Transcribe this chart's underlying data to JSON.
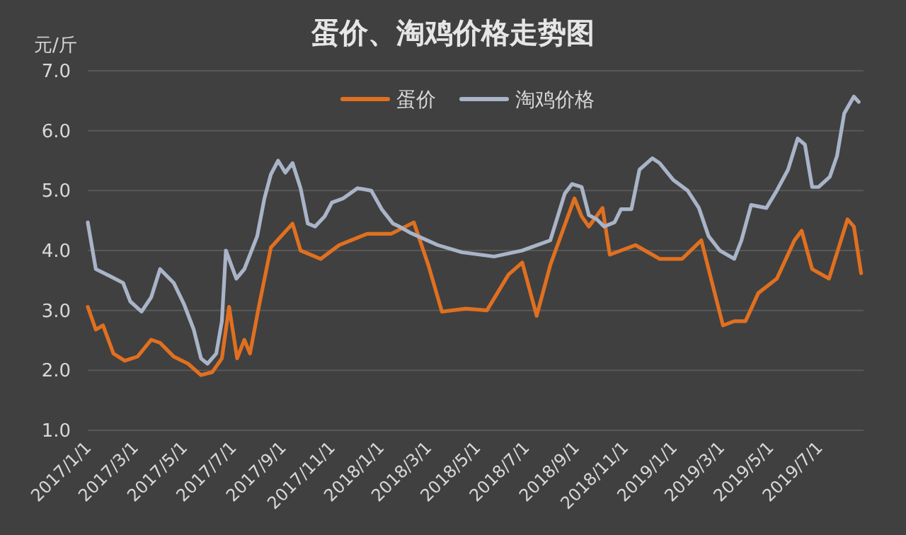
{
  "chart_data": {
    "type": "line",
    "title": "蛋价、淘鸡价格走势图",
    "ylabel": "元/斤",
    "xlim": [
      "2017-01-01",
      "2019-08-25"
    ],
    "xticks": [
      {
        "value": "2017-01-01",
        "label": "2017/1/1"
      },
      {
        "value": "2017-03-01",
        "label": "2017/3/1"
      },
      {
        "value": "2017-05-01",
        "label": "2017/5/1"
      },
      {
        "value": "2017-07-01",
        "label": "2017/7/1"
      },
      {
        "value": "2017-09-01",
        "label": "2017/9/1"
      },
      {
        "value": "2017-11-01",
        "label": "2017/11/1"
      },
      {
        "value": "2018-01-01",
        "label": "2018/1/1"
      },
      {
        "value": "2018-03-01",
        "label": "2018/3/1"
      },
      {
        "value": "2018-05-01",
        "label": "2018/5/1"
      },
      {
        "value": "2018-07-01",
        "label": "2018/7/1"
      },
      {
        "value": "2018-09-01",
        "label": "2018/9/1"
      },
      {
        "value": "2018-11-01",
        "label": "2018/11/1"
      },
      {
        "value": "2019-01-01",
        "label": "2019/1/1"
      },
      {
        "value": "2019-03-01",
        "label": "2019/3/1"
      },
      {
        "value": "2019-05-01",
        "label": "2019/5/1"
      },
      {
        "value": "2019-07-01",
        "label": "2019/7/1"
      }
    ],
    "ylim": [
      1,
      7
    ],
    "yticks": [
      {
        "value": 1,
        "label": "1.0"
      },
      {
        "value": 2,
        "label": "2.0"
      },
      {
        "value": 3,
        "label": "3.0"
      },
      {
        "value": 4,
        "label": "4.0"
      },
      {
        "value": 5,
        "label": "5.0"
      },
      {
        "value": 6,
        "label": "6.0"
      },
      {
        "value": 7,
        "label": "7.0"
      }
    ],
    "grid": "y",
    "legend": "top",
    "marker": "none",
    "line_style": "solid",
    "series": [
      {
        "name": "蛋价",
        "color": "#e07020",
        "x": [
          "2017-01-01",
          "2017-01-11",
          "2017-01-20",
          "2017-02-02",
          "2017-02-16",
          "2017-03-04",
          "2017-03-21",
          "2017-04-01",
          "2017-04-18",
          "2017-05-06",
          "2017-05-22",
          "2017-06-05",
          "2017-06-17",
          "2017-06-26",
          "2017-07-06",
          "2017-07-15",
          "2017-07-22",
          "2017-08-02",
          "2017-08-17",
          "2017-09-13",
          "2017-09-23",
          "2017-10-18",
          "2017-11-10",
          "2017-12-15",
          "2018-01-14",
          "2018-02-11",
          "2018-03-01",
          "2018-03-18",
          "2018-04-17",
          "2018-05-13",
          "2018-06-09",
          "2018-06-26",
          "2018-07-14",
          "2018-07-31",
          "2018-08-30",
          "2018-09-08",
          "2018-09-17",
          "2018-10-04",
          "2018-10-13",
          "2018-11-14",
          "2018-12-14",
          "2019-01-11",
          "2019-02-04",
          "2019-02-22",
          "2019-03-03",
          "2019-03-17",
          "2019-03-31",
          "2019-04-16",
          "2019-05-09",
          "2019-05-31",
          "2019-06-09",
          "2019-06-22",
          "2019-07-13",
          "2019-08-05",
          "2019-08-13",
          "2019-08-22"
        ],
        "values": [
          3.06,
          2.68,
          2.75,
          2.28,
          2.16,
          2.23,
          2.51,
          2.46,
          2.23,
          2.11,
          1.92,
          1.97,
          2.2,
          3.06,
          2.2,
          2.51,
          2.28,
          3.06,
          4.05,
          4.45,
          4.0,
          3.86,
          4.09,
          4.28,
          4.28,
          4.47,
          3.76,
          2.98,
          3.03,
          3.0,
          3.6,
          3.8,
          2.91,
          3.76,
          4.87,
          4.57,
          4.4,
          4.71,
          3.93,
          4.09,
          3.86,
          3.86,
          4.17,
          3.22,
          2.75,
          2.82,
          2.82,
          3.29,
          3.53,
          4.17,
          4.33,
          3.69,
          3.53,
          4.52,
          4.4,
          3.62
        ]
      },
      {
        "name": "淘鸡价格",
        "color": "#a9b4c8",
        "x": [
          "2017-01-01",
          "2017-01-11",
          "2017-01-29",
          "2017-02-14",
          "2017-02-23",
          "2017-03-09",
          "2017-03-21",
          "2017-04-01",
          "2017-04-18",
          "2017-05-01",
          "2017-05-13",
          "2017-05-22",
          "2017-05-30",
          "2017-06-10",
          "2017-06-17",
          "2017-06-22",
          "2017-07-05",
          "2017-07-15",
          "2017-07-31",
          "2017-08-09",
          "2017-08-17",
          "2017-08-26",
          "2017-09-04",
          "2017-09-13",
          "2017-09-23",
          "2017-10-02",
          "2017-10-11",
          "2017-10-23",
          "2017-11-01",
          "2017-11-15",
          "2017-12-03",
          "2017-12-20",
          "2018-01-02",
          "2018-01-16",
          "2018-01-24",
          "2018-02-06",
          "2018-03-13",
          "2018-04-12",
          "2018-05-22",
          "2018-06-26",
          "2018-07-31",
          "2018-08-18",
          "2018-08-27",
          "2018-09-08",
          "2018-09-17",
          "2018-09-27",
          "2018-10-06",
          "2018-10-19",
          "2018-10-27",
          "2018-11-09",
          "2018-11-19",
          "2018-12-05",
          "2018-12-14",
          "2018-12-31",
          "2019-01-18",
          "2019-02-01",
          "2019-02-13",
          "2019-02-27",
          "2019-03-17",
          "2019-03-26",
          "2019-04-07",
          "2019-04-26",
          "2019-05-09",
          "2019-05-23",
          "2019-06-04",
          "2019-06-13",
          "2019-06-22",
          "2019-06-30",
          "2019-07-14",
          "2019-07-23",
          "2019-08-01",
          "2019-08-13",
          "2019-08-19"
        ],
        "values": [
          4.47,
          3.69,
          3.57,
          3.46,
          3.15,
          2.98,
          3.22,
          3.69,
          3.46,
          3.1,
          2.68,
          2.2,
          2.11,
          2.28,
          2.82,
          4.0,
          3.53,
          3.69,
          4.24,
          4.87,
          5.27,
          5.5,
          5.3,
          5.46,
          5.04,
          4.45,
          4.4,
          4.57,
          4.8,
          4.87,
          5.04,
          5.0,
          4.69,
          4.45,
          4.4,
          4.3,
          4.09,
          3.97,
          3.9,
          4.0,
          4.17,
          4.95,
          5.11,
          5.06,
          4.59,
          4.52,
          4.4,
          4.47,
          4.69,
          4.69,
          5.35,
          5.54,
          5.46,
          5.18,
          5.0,
          4.71,
          4.24,
          4.0,
          3.86,
          4.17,
          4.76,
          4.71,
          5.0,
          5.35,
          5.87,
          5.77,
          5.06,
          5.06,
          5.23,
          5.58,
          6.29,
          6.57,
          6.48
        ]
      }
    ]
  }
}
